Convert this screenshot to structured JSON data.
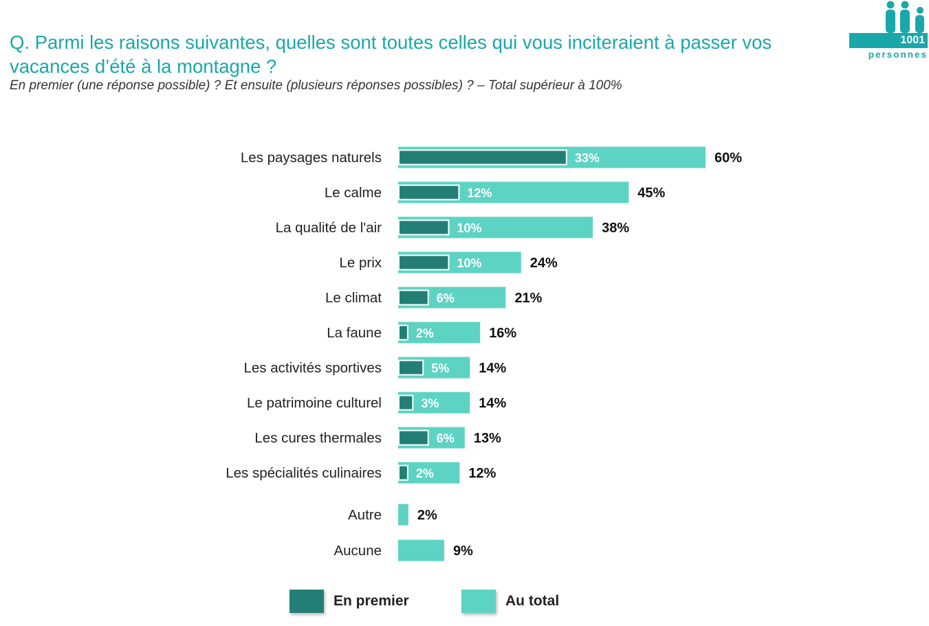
{
  "header": {
    "question": "Q. Parmi les raisons suivantes, quelles sont toutes celles qui vous inciteraient à passer vos vacances d’été à la montagne ?",
    "subtitle": "En premier (une réponse possible) ? Et ensuite (plusieurs réponses possibles) ? – Total supérieur à 100%"
  },
  "logo": {
    "number": "1001",
    "word": "personnes"
  },
  "colors": {
    "accent": "#1aa7a9",
    "en_premier": "#237f76",
    "au_total": "#5dd3c3"
  },
  "chart_data": {
    "type": "bar",
    "orientation": "horizontal",
    "categories": [
      "Les paysages naturels",
      "Le calme",
      "La qualité de l'air",
      "Le prix",
      "Le climat",
      "La faune",
      "Les activités sportives",
      "Le patrimoine culturel",
      "Les cures thermales",
      "Les spécialités culinaires",
      "Autre",
      "Aucune"
    ],
    "series": [
      {
        "name": "Au total",
        "values": [
          60,
          45,
          38,
          24,
          21,
          16,
          14,
          14,
          13,
          12,
          2,
          9
        ]
      },
      {
        "name": "En premier",
        "values": [
          33,
          12,
          10,
          10,
          6,
          2,
          5,
          3,
          6,
          2,
          null,
          null
        ]
      }
    ],
    "xlim": [
      0,
      60
    ],
    "unit": "%",
    "grid": false,
    "legend_position": "bottom"
  },
  "legend": [
    {
      "label": "En premier",
      "color": "#237f76"
    },
    {
      "label": "Au total",
      "color": "#5dd3c3"
    }
  ]
}
